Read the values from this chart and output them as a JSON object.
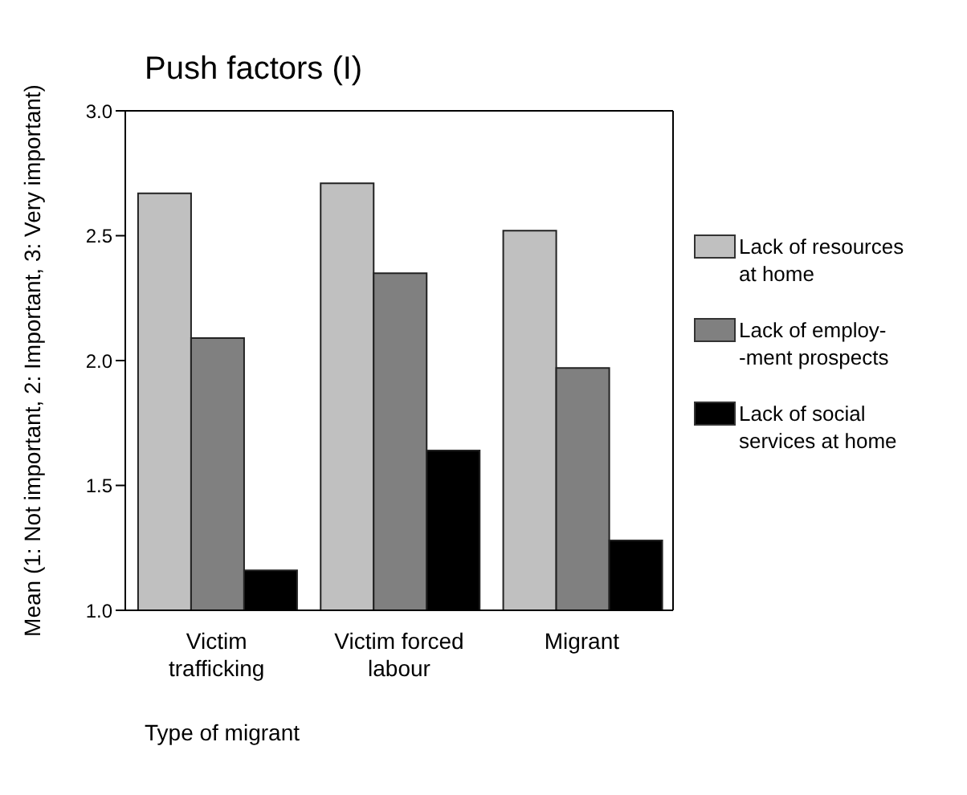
{
  "chart_data": {
    "type": "bar",
    "title": "Push factors (I)",
    "xlabel": "Type of migrant",
    "ylabel": "Mean (1: Not important, 2: Important, 3: Very important)",
    "categories": [
      "Victim trafficking",
      "Victim forced labour",
      "Migrant"
    ],
    "series": [
      {
        "name": "Lack of resources at home",
        "color": "#c0c0c0",
        "values": [
          2.67,
          2.71,
          2.52
        ]
      },
      {
        "name": "Lack of employ-\n-ment prospects",
        "color": "#808080",
        "values": [
          2.09,
          2.35,
          1.97
        ]
      },
      {
        "name": "Lack of social services at home",
        "color": "#000000",
        "values": [
          1.16,
          1.64,
          1.28
        ]
      }
    ],
    "ylim": [
      1,
      3
    ],
    "yticks": [
      {
        "value": 1,
        "label": "1.0"
      },
      1.5,
      {
        "value": 2,
        "label": "2.0"
      },
      2.5,
      {
        "value": 3,
        "label": "3.0"
      }
    ],
    "grid": false,
    "legend": "right"
  }
}
